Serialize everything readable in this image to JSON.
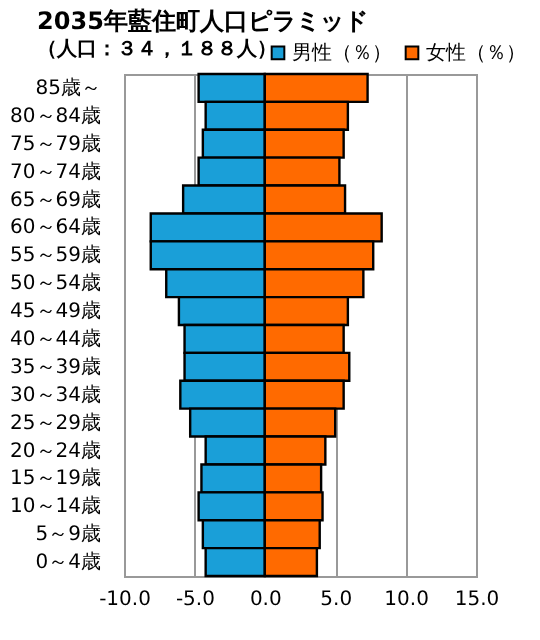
{
  "chart_data": {
    "type": "bar",
    "orientation": "horizontal",
    "title": "2035年藍住町人口ピラミッド",
    "subtitle": "（人口：３４，１８８人）",
    "categories": [
      "85歳～",
      "80～84歳",
      "75～79歳",
      "70～74歳",
      "65～69歳",
      "60～64歳",
      "55～59歳",
      "50～54歳",
      "45～49歳",
      "40～44歳",
      "35～39歳",
      "30～34歳",
      "25～29歳",
      "20～24歳",
      "15～19歳",
      "10～14歳",
      "5～9歳",
      "0～4歳"
    ],
    "series": [
      {
        "name": "男性（％）",
        "color": "#1a9fd8",
        "values": [
          -4.7,
          -4.2,
          -4.4,
          -4.7,
          -5.8,
          -8.1,
          -8.1,
          -7.0,
          -6.1,
          -5.7,
          -5.7,
          -6.0,
          -5.3,
          -4.2,
          -4.5,
          -4.7,
          -4.4,
          -4.2
        ]
      },
      {
        "name": "女性（％）",
        "color": "#ff6a00",
        "values": [
          7.3,
          5.9,
          5.6,
          5.3,
          5.7,
          8.3,
          7.7,
          7.0,
          5.9,
          5.6,
          6.0,
          5.6,
          5.0,
          4.3,
          4.0,
          4.1,
          3.9,
          3.7
        ]
      }
    ],
    "xlim": [
      -10,
      15
    ],
    "xticks": [
      {
        "value": -10,
        "label": "-10.0"
      },
      {
        "value": -5,
        "label": "-5.0"
      },
      {
        "value": 0,
        "label": "0.0"
      },
      {
        "value": 5,
        "label": "5.0"
      },
      {
        "value": 10,
        "label": "10.0"
      },
      {
        "value": 15,
        "label": "15.0"
      }
    ],
    "grid": "x",
    "legend": "top right",
    "stacked": true
  }
}
